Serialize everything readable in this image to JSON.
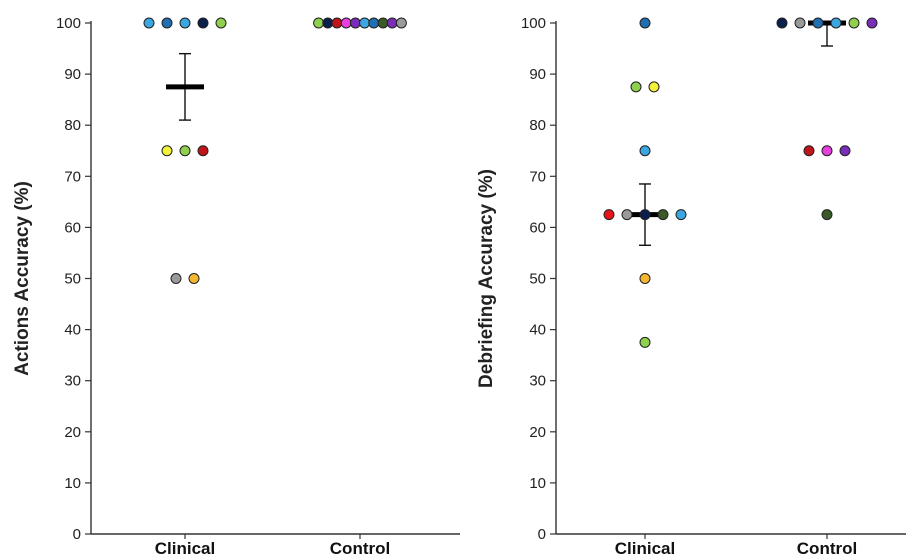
{
  "chart_data": [
    {
      "type": "scatter",
      "title": "",
      "xlabel": "",
      "ylabel": "Actions Accuracy (%)",
      "ylim": [
        0,
        100
      ],
      "yticks": [
        0,
        10,
        20,
        30,
        40,
        50,
        60,
        70,
        80,
        90,
        100
      ],
      "categories": [
        "Clinical",
        "Control"
      ],
      "grid": false,
      "points": [
        {
          "category": "Clinical",
          "value": 100,
          "color": "#3ba7e0"
        },
        {
          "category": "Clinical",
          "value": 100,
          "color": "#1f6fb2"
        },
        {
          "category": "Clinical",
          "value": 100,
          "color": "#3ba7e0"
        },
        {
          "category": "Clinical",
          "value": 100,
          "color": "#0b1f4d"
        },
        {
          "category": "Clinical",
          "value": 100,
          "color": "#8fd14f"
        },
        {
          "category": "Clinical",
          "value": 75,
          "color": "#f2f23a"
        },
        {
          "category": "Clinical",
          "value": 75,
          "color": "#8fd14f"
        },
        {
          "category": "Clinical",
          "value": 75,
          "color": "#c0141a"
        },
        {
          "category": "Clinical",
          "value": 50,
          "color": "#9a9a9a"
        },
        {
          "category": "Clinical",
          "value": 50,
          "color": "#f5b731"
        },
        {
          "category": "Control",
          "value": 100,
          "color": "#8fd14f"
        },
        {
          "category": "Control",
          "value": 100,
          "color": "#0b1f4d"
        },
        {
          "category": "Control",
          "value": 100,
          "color": "#c0141a"
        },
        {
          "category": "Control",
          "value": 100,
          "color": "#e83fe0"
        },
        {
          "category": "Control",
          "value": 100,
          "color": "#7a2db8"
        },
        {
          "category": "Control",
          "value": 100,
          "color": "#3ba7e0"
        },
        {
          "category": "Control",
          "value": 100,
          "color": "#1f6fb2"
        },
        {
          "category": "Control",
          "value": 100,
          "color": "#3a5a2a"
        },
        {
          "category": "Control",
          "value": 100,
          "color": "#7a2db8"
        },
        {
          "category": "Control",
          "value": 100,
          "color": "#9a9a9a"
        }
      ],
      "summary": [
        {
          "category": "Clinical",
          "mean": 87.5,
          "error_low": 81,
          "error_high": 94
        },
        {
          "category": "Control",
          "mean": 100,
          "error_low": 100,
          "error_high": 100
        }
      ]
    },
    {
      "type": "scatter",
      "title": "",
      "xlabel": "",
      "ylabel": "Debriefing Accuracy (%)",
      "ylim": [
        0,
        100
      ],
      "yticks": [
        0,
        10,
        20,
        30,
        40,
        50,
        60,
        70,
        80,
        90,
        100
      ],
      "categories": [
        "Clinical",
        "Control"
      ],
      "grid": false,
      "points": [
        {
          "category": "Clinical",
          "value": 100,
          "color": "#1f6fb2"
        },
        {
          "category": "Clinical",
          "value": 87.5,
          "color": "#8fd14f"
        },
        {
          "category": "Clinical",
          "value": 87.5,
          "color": "#f2f23a"
        },
        {
          "category": "Clinical",
          "value": 75,
          "color": "#3ba7e0"
        },
        {
          "category": "Clinical",
          "value": 62.5,
          "color": "#e8141a"
        },
        {
          "category": "Clinical",
          "value": 62.5,
          "color": "#9a9a9a"
        },
        {
          "category": "Clinical",
          "value": 62.5,
          "color": "#0b1f4d"
        },
        {
          "category": "Clinical",
          "value": 62.5,
          "color": "#3a5a2a"
        },
        {
          "category": "Clinical",
          "value": 62.5,
          "color": "#3ba7e0"
        },
        {
          "category": "Clinical",
          "value": 50,
          "color": "#f5b731"
        },
        {
          "category": "Clinical",
          "value": 37.5,
          "color": "#8fd14f"
        },
        {
          "category": "Control",
          "value": 100,
          "color": "#0b1f4d"
        },
        {
          "category": "Control",
          "value": 100,
          "color": "#9a9a9a"
        },
        {
          "category": "Control",
          "value": 100,
          "color": "#1f6fb2"
        },
        {
          "category": "Control",
          "value": 100,
          "color": "#3ba7e0"
        },
        {
          "category": "Control",
          "value": 100,
          "color": "#8fd14f"
        },
        {
          "category": "Control",
          "value": 100,
          "color": "#7a2db8"
        },
        {
          "category": "Control",
          "value": 75,
          "color": "#c0141a"
        },
        {
          "category": "Control",
          "value": 75,
          "color": "#e83fe0"
        },
        {
          "category": "Control",
          "value": 75,
          "color": "#7a2db8"
        },
        {
          "category": "Control",
          "value": 62.5,
          "color": "#3a5a2a"
        }
      ],
      "summary": [
        {
          "category": "Clinical",
          "mean": 62.5,
          "error_low": 56.5,
          "error_high": 68.5
        },
        {
          "category": "Control",
          "mean": 100,
          "error_low": 95.5,
          "error_high": 100
        }
      ]
    }
  ]
}
